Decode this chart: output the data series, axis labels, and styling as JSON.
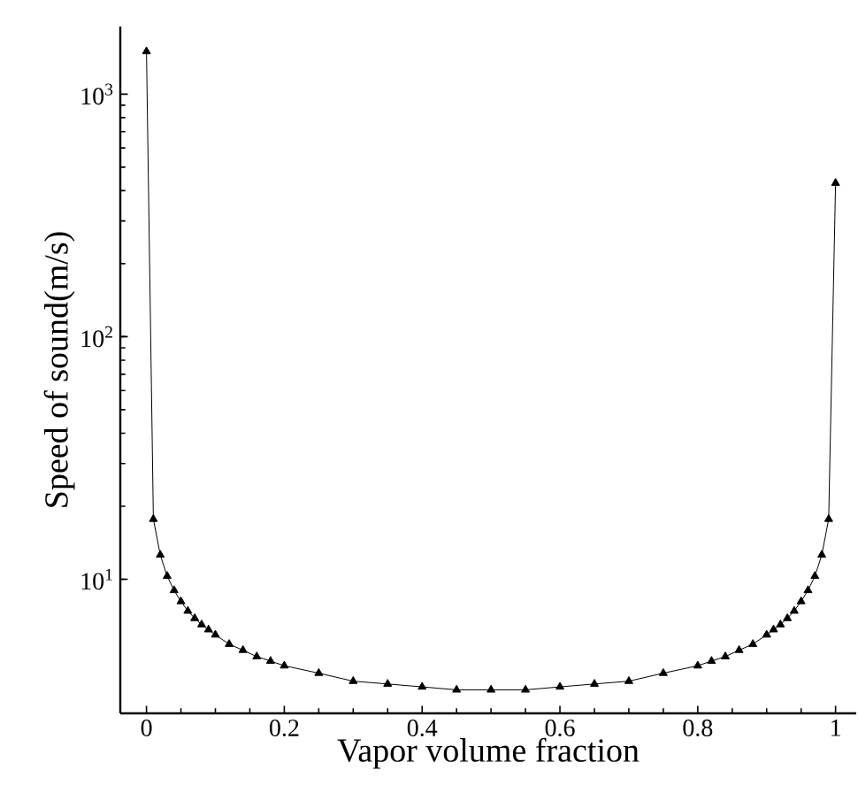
{
  "chart_data": {
    "type": "line",
    "xlabel": "Vapor volume fraction",
    "ylabel": "Speed of sound(m/s)",
    "x": [
      0,
      0.01,
      0.02,
      0.03,
      0.04,
      0.05,
      0.06,
      0.07,
      0.08,
      0.09,
      0.1,
      0.12,
      0.14,
      0.16,
      0.18,
      0.2,
      0.25,
      0.3,
      0.35,
      0.4,
      0.45,
      0.5,
      0.55,
      0.6,
      0.65,
      0.7,
      0.75,
      0.8,
      0.82,
      0.84,
      0.86,
      0.88,
      0.9,
      0.91,
      0.92,
      0.93,
      0.94,
      0.95,
      0.96,
      0.97,
      0.98,
      0.99,
      1
    ],
    "series": [
      {
        "color": "#000000",
        "values": [
          1500,
          17.7,
          12.6,
          10.3,
          9.0,
          8.1,
          7.4,
          6.9,
          6.5,
          6.2,
          5.9,
          5.4,
          5.1,
          4.8,
          4.6,
          4.4,
          4.1,
          3.8,
          3.7,
          3.6,
          3.5,
          3.5,
          3.5,
          3.6,
          3.7,
          3.8,
          4.1,
          4.4,
          4.6,
          4.8,
          5.1,
          5.4,
          5.9,
          6.2,
          6.5,
          6.9,
          7.4,
          8.1,
          9.0,
          10.3,
          12.6,
          17.7,
          430
        ]
      }
    ],
    "log": "y",
    "xlim": [
      -0.038,
      1.03
    ],
    "ylim": [
      2.8,
      1900
    ],
    "xticks": [
      0,
      0.2,
      0.4,
      0.6,
      0.8,
      1
    ],
    "yticks": [
      {
        "value": 10,
        "label": "10$^{1}$"
      },
      {
        "value": 100,
        "label": "10$^{2}$"
      },
      {
        "value": 1000,
        "label": "10$^{3}$"
      }
    ],
    "marker": "triangle",
    "line_style": "solid"
  }
}
